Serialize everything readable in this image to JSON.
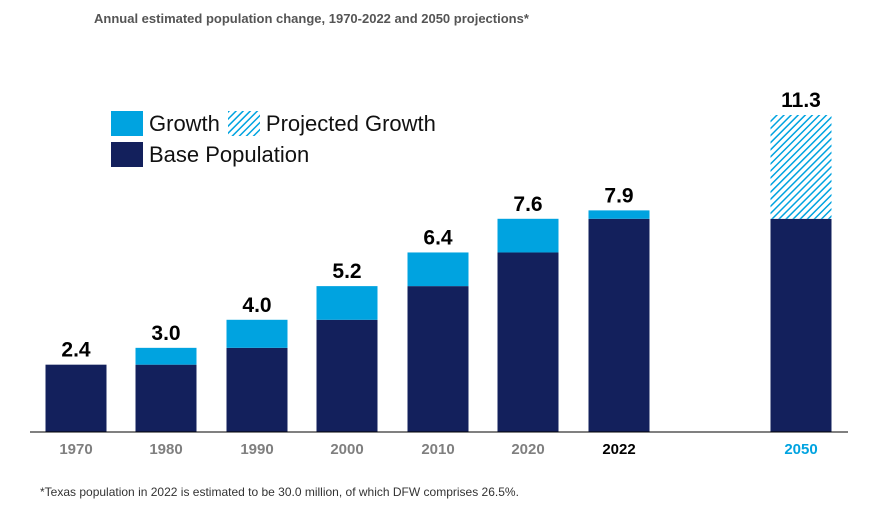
{
  "title": "Annual estimated population change, 1970-2022 and 2050 projections*",
  "footnote": "*Texas population in 2022 is estimated to be 30.0 million, of which DFW comprises 26.5%.",
  "legend": {
    "growth": "Growth",
    "projected_growth": "Projected Growth",
    "base_population": "Base Population"
  },
  "colors": {
    "base": "#13205c",
    "growth": "#00a3e0",
    "projected": "#00a3e0",
    "axis_label": "#7f7f7f",
    "highlight_2022": "#000000",
    "highlight_2050": "#00a3e0"
  },
  "chart_data": {
    "type": "bar",
    "stacked": true,
    "categories": [
      "1970",
      "1980",
      "1990",
      "2000",
      "2010",
      "2020",
      "2022",
      "2050"
    ],
    "series": [
      {
        "name": "Base Population",
        "values": [
          2.4,
          2.4,
          3.0,
          4.0,
          5.2,
          6.4,
          7.6,
          7.6
        ]
      },
      {
        "name": "Growth",
        "values": [
          0,
          0.6,
          1.0,
          1.2,
          1.2,
          1.2,
          0.3,
          0
        ]
      },
      {
        "name": "Projected Growth",
        "values": [
          0,
          0,
          0,
          0,
          0,
          0,
          0,
          3.7
        ]
      }
    ],
    "totals": [
      2.4,
      3.0,
      4.0,
      5.2,
      6.4,
      7.6,
      7.9,
      11.3
    ],
    "total_labels": [
      "2.4",
      "3.0",
      "4.0",
      "5.2",
      "6.4",
      "7.6",
      "7.9",
      "11.3"
    ],
    "ylim": [
      0,
      11.3
    ],
    "grid": false,
    "legend_position": "top-left"
  }
}
